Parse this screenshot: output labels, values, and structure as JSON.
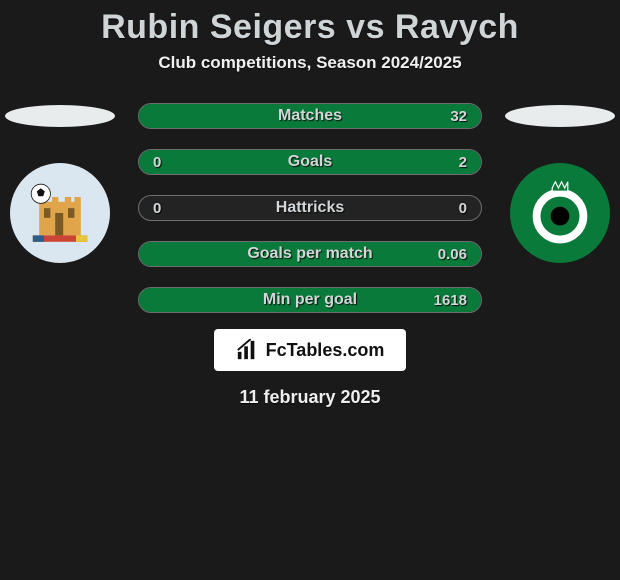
{
  "title": "Rubin Seigers vs Ravych",
  "subtitle": "Club competitions, Season 2024/2025",
  "date": "11 february 2025",
  "brand": "FcTables.com",
  "colors": {
    "bg": "#1a1a1a",
    "bar_bg": "#232323",
    "bar_border": "#6a6e70",
    "fill_left": "#3a5c6a",
    "fill_right": "#0a7a3a",
    "text": "#d2d6d8",
    "ellipse": "#e8eced",
    "badge1_bg": "#dbe7f0",
    "badge1_castle": "#e0a54a",
    "badge1_accent": "#2a5f86",
    "badge2_bg": "#0a7a3a",
    "badge2_ring": "#ffffff",
    "badge2_center": "#000000",
    "brand_bg": "#ffffff",
    "brand_fg": "#111111"
  },
  "rows": [
    {
      "label": "Matches",
      "left": "",
      "right": "32",
      "left_pct": 0,
      "right_pct": 100
    },
    {
      "label": "Goals",
      "left": "0",
      "right": "2",
      "left_pct": 0,
      "right_pct": 100
    },
    {
      "label": "Hattricks",
      "left": "0",
      "right": "0",
      "left_pct": 0,
      "right_pct": 0
    },
    {
      "label": "Goals per match",
      "left": "",
      "right": "0.06",
      "left_pct": 0,
      "right_pct": 100
    },
    {
      "label": "Min per goal",
      "left": "",
      "right": "1618",
      "left_pct": 0,
      "right_pct": 100
    }
  ]
}
